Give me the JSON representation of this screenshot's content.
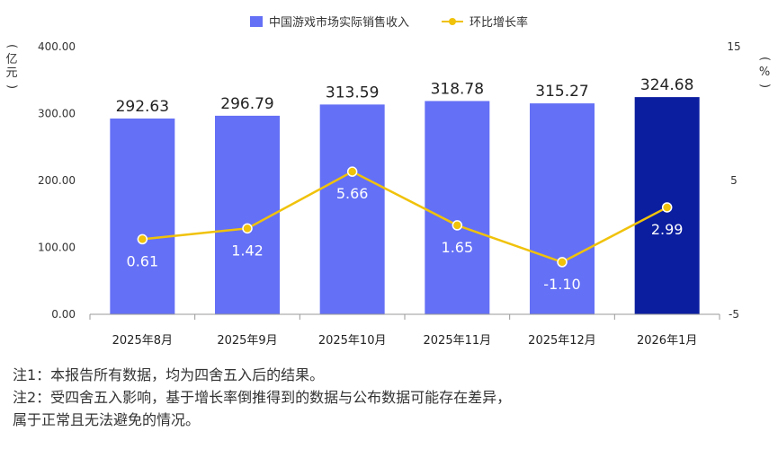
{
  "chart_data": {
    "type": "bar+line",
    "categories": [
      "2025年8月",
      "2025年9月",
      "2025年10月",
      "2025年11月",
      "2025年12月",
      "2026年1月"
    ],
    "series": [
      {
        "name": "中国游戏市场实际销售收入",
        "type": "bar",
        "axis": "left",
        "values": [
          292.63,
          296.79,
          313.59,
          318.78,
          315.27,
          324.68
        ],
        "labels": [
          "292.63",
          "296.79",
          "313.59",
          "318.78",
          "315.27",
          "324.68"
        ]
      },
      {
        "name": "环比增长率",
        "type": "line",
        "axis": "right",
        "values": [
          0.61,
          1.42,
          5.66,
          1.65,
          -1.1,
          2.99
        ],
        "labels": [
          "0.61",
          "1.42",
          "5.66",
          "1.65",
          "-1.10",
          "2.99"
        ]
      }
    ],
    "y_left": {
      "unit": "(亿元)",
      "ticks": [
        "0.00",
        "100.00",
        "200.00",
        "300.00",
        "400.00"
      ],
      "range": [
        0,
        400
      ]
    },
    "y_right": {
      "unit": "(%)",
      "ticks": [
        "-5",
        "5",
        "15"
      ],
      "range": [
        -5,
        15
      ]
    },
    "grid": false,
    "legend_position": "top-center",
    "colors": {
      "bar": "#6470f5",
      "bar_highlight": "#0b1ea0",
      "line": "#f0c20a"
    },
    "highlight_index": 5
  },
  "notes": [
    "注1：本报告所有数据，均为四舍五入后的结果。",
    "注2：受四舍五入影响，基于增长率倒推得到的数据与公布数据可能存在差异，",
    "属于正常且无法避免的情况。"
  ]
}
